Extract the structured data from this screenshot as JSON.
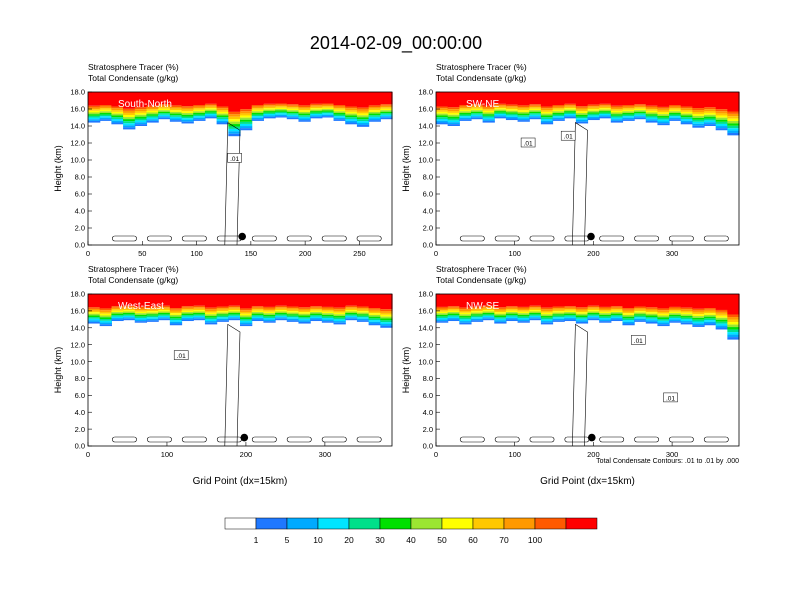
{
  "title": "2014-02-09_00:00:00",
  "footnote": "Total Condensate Contours: .01 to .01 by .000",
  "colorbar": {
    "labels": [
      "1",
      "5",
      "10",
      "20",
      "30",
      "40",
      "50",
      "60",
      "70",
      "100"
    ],
    "colors": [
      "#ffffff",
      "#1f78ff",
      "#00aaff",
      "#00e5ff",
      "#00e08a",
      "#00e000",
      "#9be632",
      "#ffff00",
      "#ffc800",
      "#ff9900",
      "#ff5a00",
      "#ff0000"
    ]
  },
  "chart_data": [
    {
      "type": "heatmap",
      "title_line1": "Stratosphere Tracer   (%)",
      "title_line2": "Total Condensate   (g/kg)",
      "panel_label": "South-North",
      "ylabel": "Height (km)",
      "xlabel": "",
      "xlim": [
        0,
        280
      ],
      "ylim": [
        0,
        18
      ],
      "xticks": [
        "0",
        "50",
        "100",
        "150",
        "200",
        "250"
      ],
      "xtick_values": [
        0,
        50,
        100,
        150,
        200,
        250
      ],
      "yticks": [
        "0.0",
        "2.0",
        "4.0",
        "6.0",
        "8.0",
        "10.0",
        "12.0",
        "14.0",
        "16.0",
        "18.0"
      ],
      "marker": {
        "x": 142,
        "y": 1.0
      },
      "contour_labels": [
        {
          "text": ".01",
          "x": 135,
          "y": 10.2
        }
      ],
      "tracer_base_km": [
        14.4,
        14.6,
        14.2,
        13.6,
        14.0,
        14.4,
        14.8,
        14.5,
        14.3,
        14.6,
        14.9,
        14.2,
        12.8,
        13.5,
        14.6,
        14.9,
        15.0,
        14.8,
        14.5,
        14.9,
        15.0,
        14.6,
        14.2,
        13.9,
        14.5,
        14.8
      ]
    },
    {
      "type": "heatmap",
      "title_line1": "Stratosphere Tracer   (%)",
      "title_line2": "Total Condensate   (g/kg)",
      "panel_label": "SW-NE",
      "ylabel": "Height (km)",
      "xlabel": "",
      "xlim": [
        0,
        385
      ],
      "ylim": [
        0,
        18
      ],
      "xticks": [
        "0",
        "100",
        "200",
        "300"
      ],
      "xtick_values": [
        0,
        100,
        200,
        300
      ],
      "yticks": [
        "0.0",
        "2.0",
        "4.0",
        "6.0",
        "8.0",
        "10.0",
        "12.0",
        "14.0",
        "16.0",
        "18.0"
      ],
      "marker": {
        "x": 197,
        "y": 1.0
      },
      "contour_labels": [
        {
          "text": ".01",
          "x": 117,
          "y": 12.0
        },
        {
          "text": ".01",
          "x": 168,
          "y": 12.8
        }
      ],
      "tracer_base_km": [
        14.2,
        14.0,
        14.6,
        14.8,
        14.4,
        14.9,
        14.7,
        14.5,
        14.8,
        14.2,
        14.6,
        14.9,
        14.3,
        14.7,
        14.9,
        14.4,
        14.6,
        14.8,
        14.4,
        14.1,
        14.6,
        14.2,
        13.8,
        14.0,
        13.5,
        12.9
      ]
    },
    {
      "type": "heatmap",
      "title_line1": "Stratosphere Tracer   (%)",
      "title_line2": "Total Condensate   (g/kg)",
      "panel_label": "West-East",
      "ylabel": "Height (km)",
      "xlabel": "Grid Point (dx=15km)",
      "xlim": [
        0,
        385
      ],
      "ylim": [
        0,
        18
      ],
      "xticks": [
        "0",
        "100",
        "200",
        "300"
      ],
      "xtick_values": [
        0,
        100,
        200,
        300
      ],
      "yticks": [
        "0.0",
        "2.0",
        "4.0",
        "6.0",
        "8.0",
        "10.0",
        "12.0",
        "14.0",
        "16.0",
        "18.0"
      ],
      "marker": {
        "x": 198,
        "y": 1.0
      },
      "contour_labels": [
        {
          "text": ".01",
          "x": 118,
          "y": 10.7
        }
      ],
      "tracer_base_km": [
        14.5,
        14.2,
        14.8,
        14.9,
        14.6,
        14.7,
        14.9,
        14.3,
        14.8,
        14.9,
        14.4,
        14.7,
        14.9,
        14.2,
        14.8,
        14.6,
        14.9,
        14.7,
        14.5,
        14.8,
        14.6,
        14.4,
        14.9,
        14.7,
        14.3,
        14.0
      ]
    },
    {
      "type": "heatmap",
      "title_line1": "Stratosphere Tracer   (%)",
      "title_line2": "Total Condensate   (g/kg)",
      "panel_label": "NW-SE",
      "ylabel": "Height (km)",
      "xlabel": "Grid Point (dx=15km)",
      "xlim": [
        0,
        385
      ],
      "ylim": [
        0,
        18
      ],
      "xticks": [
        "0",
        "100",
        "200",
        "300"
      ],
      "xtick_values": [
        0,
        100,
        200,
        300
      ],
      "yticks": [
        "0.0",
        "2.0",
        "4.0",
        "6.0",
        "8.0",
        "10.0",
        "12.0",
        "14.0",
        "16.0",
        "18.0"
      ],
      "marker": {
        "x": 198,
        "y": 1.0
      },
      "contour_labels": [
        {
          "text": ".01",
          "x": 257,
          "y": 12.5
        },
        {
          "text": ".01",
          "x": 298,
          "y": 5.7
        }
      ],
      "tracer_base_km": [
        14.6,
        14.8,
        14.4,
        14.7,
        14.9,
        14.5,
        14.8,
        14.6,
        14.9,
        14.4,
        14.7,
        14.8,
        14.5,
        14.9,
        14.6,
        14.8,
        14.3,
        14.7,
        14.5,
        14.2,
        14.6,
        14.4,
        14.1,
        14.3,
        13.8,
        12.6
      ]
    }
  ]
}
